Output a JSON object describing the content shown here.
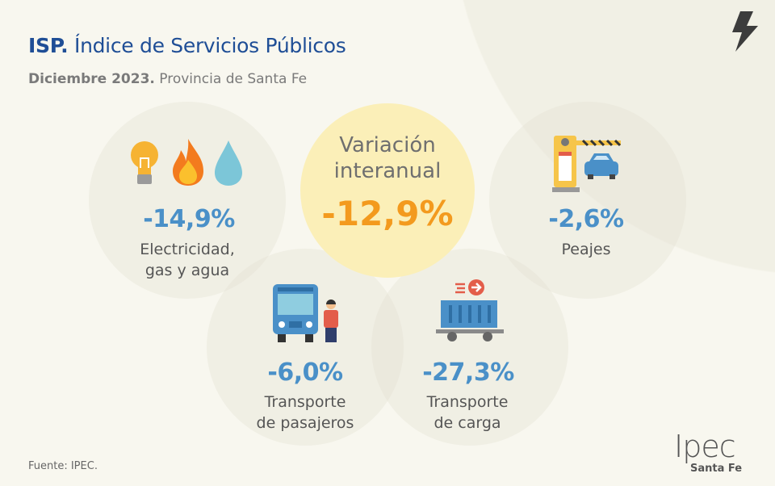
{
  "header": {
    "title_bold": "ISP.",
    "title_rest": "Índice de Servicios Públicos",
    "subtitle_bold": "Diciembre 2023.",
    "subtitle_rest": "Provincia de Santa Fe"
  },
  "center": {
    "label_line1": "Variación",
    "label_line2": "interanual",
    "value": "-12,9%"
  },
  "items": [
    {
      "value": "-14,9%",
      "label_line1": "Electricidad,",
      "label_line2": "gas y agua",
      "icons": [
        "lightbulb-icon",
        "flame-icon",
        "water-drop-icon"
      ]
    },
    {
      "value": "-2,6%",
      "label_line1": "Peajes",
      "label_line2": "",
      "icons": [
        "toll-barrier-icon"
      ]
    },
    {
      "value": "-6,0%",
      "label_line1": "Transporte",
      "label_line2": "de pasajeros",
      "icons": [
        "bus-icon",
        "person-icon"
      ]
    },
    {
      "value": "-27,3%",
      "label_line1": "Transporte",
      "label_line2": "de carga",
      "icons": [
        "cargo-container-icon"
      ]
    }
  ],
  "footer": {
    "source": "Fuente: IPEC.",
    "logo_text": "Ipec",
    "logo_sub": "Santa Fe"
  },
  "colors": {
    "title": "#1f4e96",
    "value": "#4a90c8",
    "center_value": "#f39a1e",
    "center_bg": "#fbefb8",
    "background": "#f8f7ef"
  }
}
